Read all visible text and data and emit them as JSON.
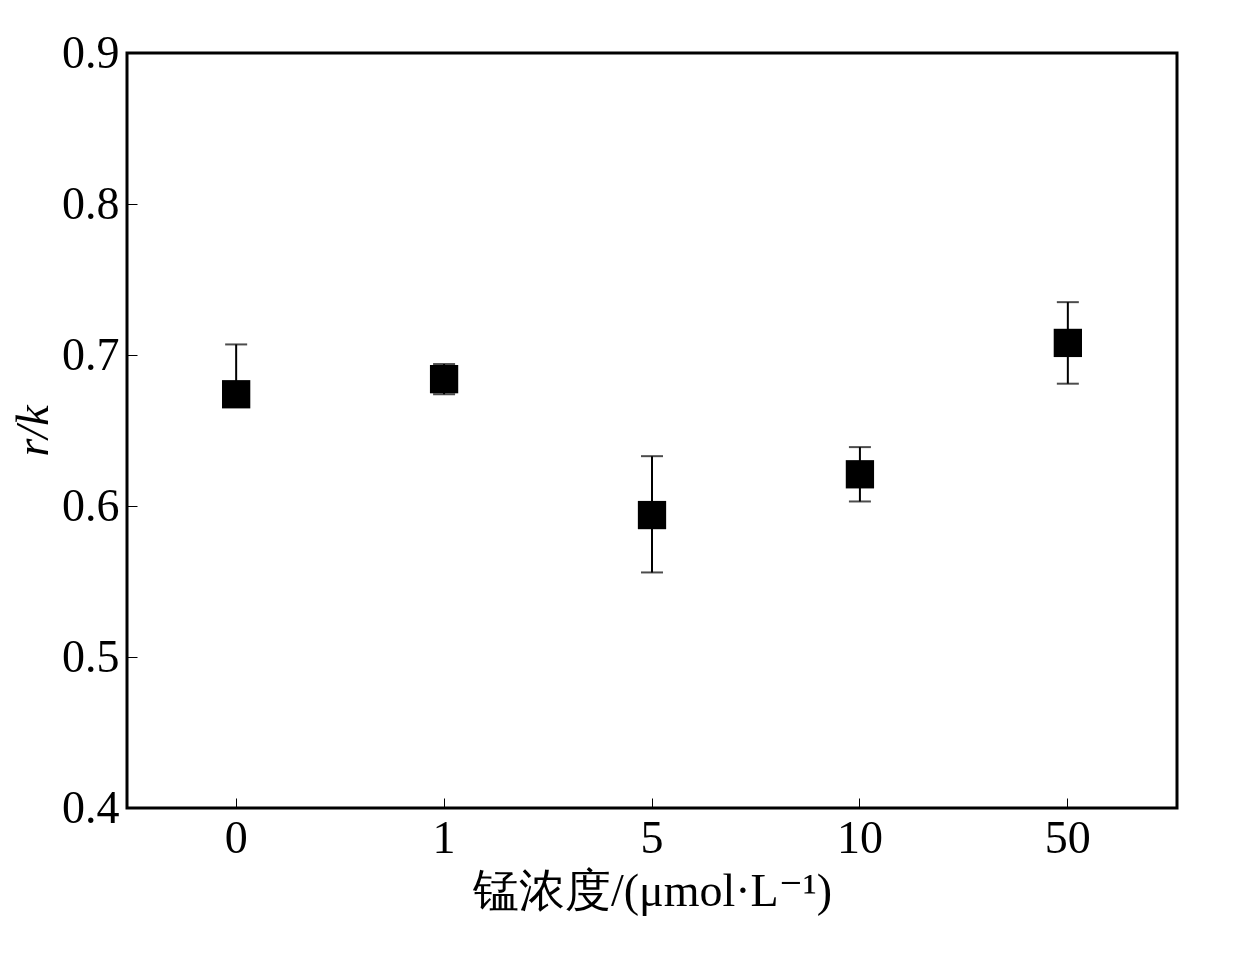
{
  "chart_data": {
    "type": "scatter",
    "xlabel": "锰浓度/(μmol·L⁻¹)",
    "ylabel": "r/k",
    "categories": [
      "0",
      "1",
      "5",
      "10",
      "50"
    ],
    "series": [
      {
        "color": "#000000",
        "values": [
          0.674,
          0.684,
          0.594,
          0.621,
          0.708
        ],
        "errors": [
          [
            0.674,
            0.707
          ],
          0.01,
          [
            0.556,
            0.633
          ],
          [
            0.603,
            0.639
          ],
          [
            0.681,
            0.735
          ]
        ]
      }
    ],
    "ylim": [
      0.4,
      0.9
    ],
    "yticks": [
      0.4,
      0.5,
      0.6,
      0.7,
      0.8,
      0.9
    ],
    "marker": "square",
    "grid": false
  }
}
